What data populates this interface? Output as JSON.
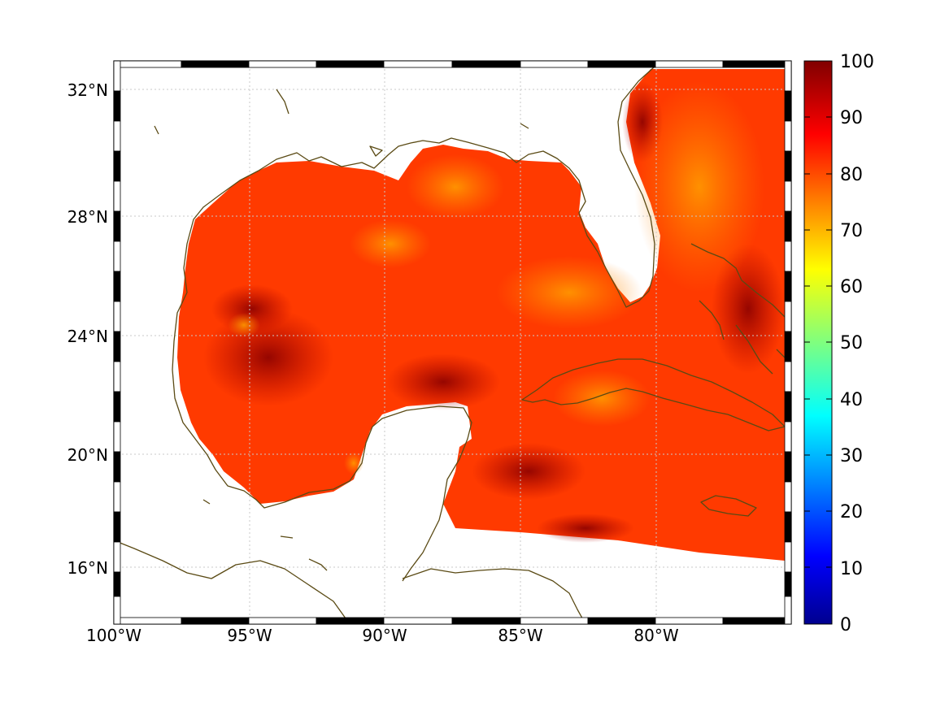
{
  "chart_data": {
    "type": "heatmap",
    "projection": "equirectangular",
    "x_ticks": [
      "100°W",
      "95°W",
      "90°W",
      "85°W",
      "80°W"
    ],
    "y_ticks": [
      "32°N",
      "28°N",
      "24°N",
      "20°N",
      "16°N"
    ],
    "x_range_deg": [
      -100,
      -75
    ],
    "y_range_deg": [
      14.3,
      33
    ],
    "gridlines": true,
    "colormap": "jet",
    "colorbar": {
      "range": [
        0,
        100
      ],
      "ticks": [
        "100",
        "90",
        "80",
        "70",
        "60",
        "50",
        "40",
        "30",
        "20",
        "10",
        "0"
      ]
    },
    "colors": {
      "land": "#ffffff",
      "coastline": "#5a4a14",
      "grid": "#c8c8c8",
      "field_dominant": "#ff3a00",
      "field_low": "#ffa000",
      "field_high": "#900000"
    }
  }
}
